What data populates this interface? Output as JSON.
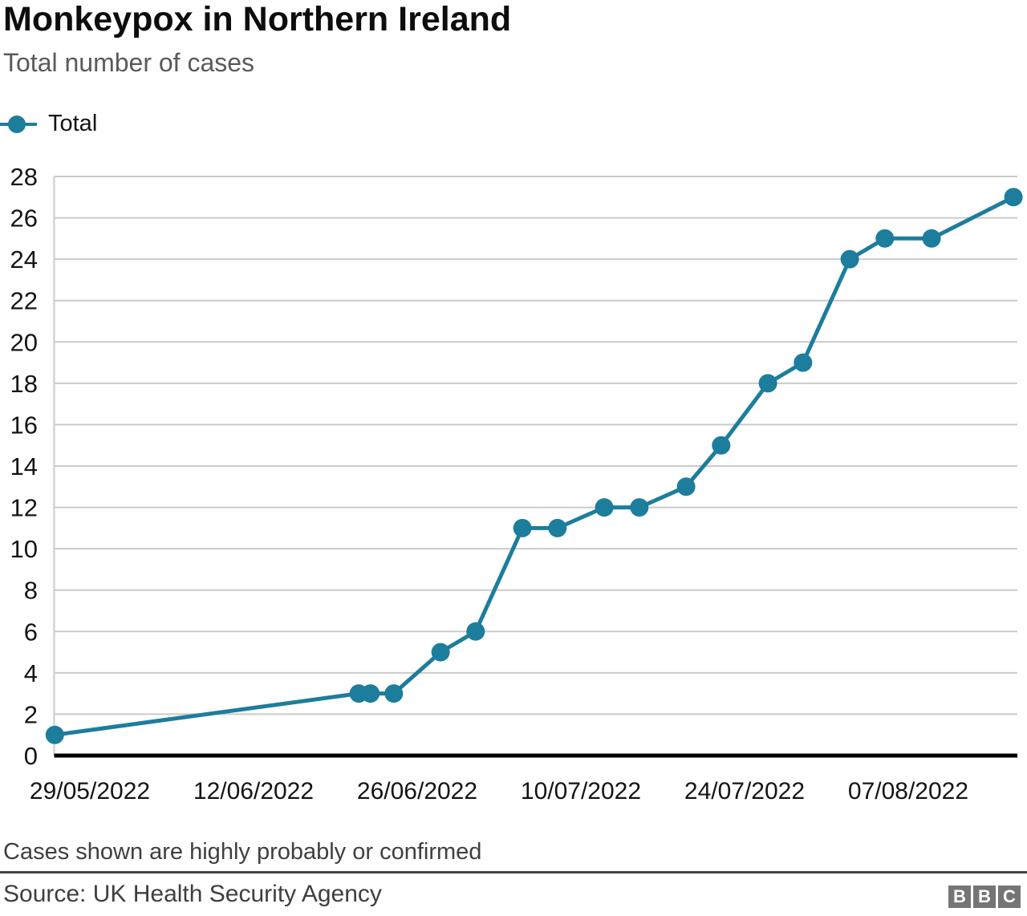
{
  "header": {
    "title": "Monkeypox in Northern Ireland",
    "subtitle": "Total number of cases"
  },
  "legend": {
    "label": "Total"
  },
  "footer": {
    "note": "Cases shown are highly probably or confirmed",
    "source": "Source: UK Health Security Agency",
    "logo_letters": [
      "B",
      "B",
      "C"
    ]
  },
  "colors": {
    "series": "#1D7D9C",
    "grid": "#CBCBCB",
    "axis": "#000000",
    "tick_text": "#141414"
  },
  "chart_data": {
    "type": "line",
    "title": "Monkeypox in Northern Ireland",
    "subtitle": "Total number of cases",
    "ylim": [
      0,
      28
    ],
    "y_ticks": [
      0,
      2,
      4,
      6,
      8,
      10,
      12,
      14,
      16,
      18,
      20,
      22,
      24,
      26,
      28
    ],
    "x_tick_labels": [
      "29/05/2022",
      "12/06/2022",
      "26/06/2022",
      "10/07/2022",
      "24/07/2022",
      "07/08/2022"
    ],
    "grid": "horizontal",
    "legend_position": "top-left",
    "series": [
      {
        "name": "Total",
        "points": [
          {
            "date": "26/05/2022",
            "value": 1
          },
          {
            "date": "21/06/2022",
            "value": 3
          },
          {
            "date": "22/06/2022",
            "value": 3
          },
          {
            "date": "24/06/2022",
            "value": 3
          },
          {
            "date": "28/06/2022",
            "value": 5
          },
          {
            "date": "01/07/2022",
            "value": 6
          },
          {
            "date": "05/07/2022",
            "value": 11
          },
          {
            "date": "08/07/2022",
            "value": 11
          },
          {
            "date": "12/07/2022",
            "value": 12
          },
          {
            "date": "15/07/2022",
            "value": 12
          },
          {
            "date": "19/07/2022",
            "value": 13
          },
          {
            "date": "22/07/2022",
            "value": 15
          },
          {
            "date": "26/07/2022",
            "value": 18
          },
          {
            "date": "29/07/2022",
            "value": 19
          },
          {
            "date": "02/08/2022",
            "value": 24
          },
          {
            "date": "05/08/2022",
            "value": 25
          },
          {
            "date": "09/08/2022",
            "value": 25
          },
          {
            "date": "16/08/2022",
            "value": 27
          }
        ]
      }
    ]
  }
}
